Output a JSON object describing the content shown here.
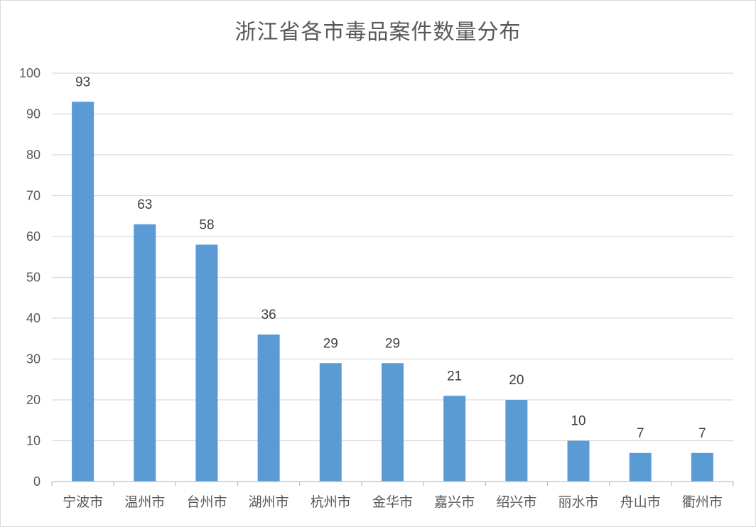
{
  "chart_data": {
    "type": "bar",
    "title": "浙江省各市毒品案件数量分布",
    "xlabel": "",
    "ylabel": "",
    "categories": [
      "宁波市",
      "温州市",
      "台州市",
      "湖州市",
      "杭州市",
      "金华市",
      "嘉兴市",
      "绍兴市",
      "丽水市",
      "舟山市",
      "衢州市"
    ],
    "values": [
      93,
      63,
      58,
      36,
      29,
      29,
      21,
      20,
      10,
      7,
      7
    ],
    "ylim": [
      0,
      100
    ],
    "yticks": [
      0,
      10,
      20,
      30,
      40,
      50,
      60,
      70,
      80,
      90,
      100
    ],
    "grid": true,
    "legend": "none",
    "data_labels": true,
    "bar_color": "#5b9bd5",
    "grid_color": "#d9d9d9"
  }
}
